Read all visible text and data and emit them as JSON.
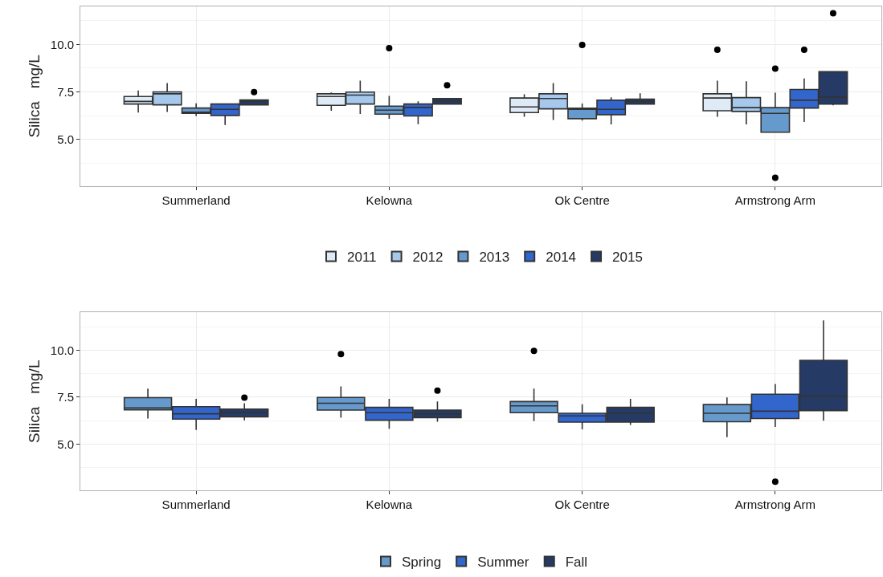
{
  "chart_data": [
    {
      "type": "box",
      "ylabel": "Silica   mg/L",
      "categories": [
        "Summerland",
        "Kelowna",
        "Ok Centre",
        "Armstrong Arm"
      ],
      "ylim": [
        2.55,
        12.0
      ],
      "yticks": [
        {
          "value": 5,
          "label": "5.0"
        },
        {
          "value": 7.5,
          "label": "7.5"
        },
        {
          "value": 10,
          "label": "10.0"
        }
      ],
      "grid": true,
      "legend": "bottom",
      "series": [
        {
          "name": "2011",
          "color": "#deebf7",
          "boxes": [
            {
              "low": 6.41,
              "q1": 6.86,
              "median": 7.0,
              "q3": 7.26,
              "high": 7.57
            },
            {
              "low": 6.51,
              "q1": 6.79,
              "median": 7.26,
              "q3": 7.4,
              "high": 7.47
            },
            {
              "low": 6.19,
              "q1": 6.41,
              "median": 6.71,
              "q3": 7.18,
              "high": 7.37
            },
            {
              "low": 6.19,
              "q1": 6.51,
              "median": 7.18,
              "q3": 7.4,
              "high": 8.09,
              "outliers": [
                9.72
              ]
            }
          ]
        },
        {
          "name": "2012",
          "color": "#a6c8ec",
          "boxes": [
            {
              "low": 6.44,
              "q1": 6.82,
              "median": 7.4,
              "q3": 7.5,
              "high": 7.97
            },
            {
              "low": 6.34,
              "q1": 6.86,
              "median": 7.33,
              "q3": 7.49,
              "high": 8.09
            },
            {
              "low": 6.02,
              "q1": 6.61,
              "median": 7.15,
              "q3": 7.4,
              "high": 7.97
            },
            {
              "low": 5.79,
              "q1": 6.47,
              "median": 6.67,
              "q3": 7.2,
              "high": 8.06
            }
          ]
        },
        {
          "name": "2013",
          "color": "#6699cc",
          "boxes": [
            {
              "low": 6.23,
              "q1": 6.37,
              "median": 6.43,
              "q3": 6.65,
              "high": 6.9
            },
            {
              "low": 6.09,
              "q1": 6.33,
              "median": 6.54,
              "q3": 6.75,
              "high": 7.29,
              "outliers": [
                9.8
              ]
            },
            {
              "low": 5.99,
              "q1": 6.09,
              "median": 6.58,
              "q3": 6.64,
              "high": 6.89,
              "outliers": [
                9.97
              ]
            },
            {
              "low": 5.38,
              "q1": 5.38,
              "median": 6.37,
              "q3": 6.67,
              "high": 7.46,
              "outliers": [
                8.73,
                2.98
              ]
            }
          ]
        },
        {
          "name": "2014",
          "color": "#3366cc",
          "boxes": [
            {
              "low": 5.76,
              "q1": 6.26,
              "median": 6.58,
              "q3": 6.86,
              "high": 6.86
            },
            {
              "low": 5.8,
              "q1": 6.23,
              "median": 6.68,
              "q3": 6.86,
              "high": 7.0
            },
            {
              "low": 5.79,
              "q1": 6.3,
              "median": 6.58,
              "q3": 7.06,
              "high": 7.22
            },
            {
              "low": 5.92,
              "q1": 6.65,
              "median": 7.06,
              "q3": 7.63,
              "high": 8.21,
              "outliers": [
                9.72
              ]
            }
          ]
        },
        {
          "name": "2015",
          "color": "#253b66",
          "boxes": [
            {
              "low": 6.82,
              "q1": 6.82,
              "median": 7.02,
              "q3": 7.08,
              "high": 7.08,
              "outliers": [
                7.49
              ]
            },
            {
              "low": 6.86,
              "q1": 6.86,
              "median": 7.03,
              "q3": 7.15,
              "high": 7.15,
              "outliers": [
                7.85
              ]
            },
            {
              "low": 6.86,
              "q1": 6.86,
              "median": 7.0,
              "q3": 7.12,
              "high": 7.43
            },
            {
              "low": 6.79,
              "q1": 6.86,
              "median": 7.23,
              "q3": 8.56,
              "high": 8.56,
              "outliers": [
                11.64
              ]
            }
          ]
        }
      ]
    },
    {
      "type": "box",
      "ylabel": "Silica   mg/L",
      "categories": [
        "Summerland",
        "Kelowna",
        "Ok Centre",
        "Armstrong Arm"
      ],
      "ylim": [
        2.55,
        12.0
      ],
      "yticks": [
        {
          "value": 5,
          "label": "5.0"
        },
        {
          "value": 7.5,
          "label": "7.5"
        },
        {
          "value": 10,
          "label": "10.0"
        }
      ],
      "grid": true,
      "legend": "bottom",
      "series": [
        {
          "name": "Spring",
          "color": "#6699cc",
          "boxes": [
            {
              "low": 6.37,
              "q1": 6.83,
              "median": 6.93,
              "q3": 7.48,
              "high": 7.96
            },
            {
              "low": 6.41,
              "q1": 6.82,
              "median": 7.18,
              "q3": 7.49,
              "high": 8.08,
              "outliers": [
                9.79
              ]
            },
            {
              "low": 6.23,
              "q1": 6.68,
              "median": 7.04,
              "q3": 7.27,
              "high": 7.96,
              "outliers": [
                9.96
              ]
            },
            {
              "low": 5.38,
              "q1": 6.2,
              "median": 6.65,
              "q3": 7.11,
              "high": 7.49
            }
          ]
        },
        {
          "name": "Summer",
          "color": "#3366cc",
          "boxes": [
            {
              "low": 5.76,
              "q1": 6.34,
              "median": 6.62,
              "q3": 7.0,
              "high": 7.42
            },
            {
              "low": 5.83,
              "q1": 6.28,
              "median": 6.68,
              "q3": 6.96,
              "high": 7.42
            },
            {
              "low": 5.8,
              "q1": 6.18,
              "median": 6.51,
              "q3": 6.65,
              "high": 7.13
            },
            {
              "low": 5.92,
              "q1": 6.37,
              "median": 6.76,
              "q3": 7.66,
              "high": 8.2,
              "outliers": [
                3.01
              ]
            }
          ]
        },
        {
          "name": "Fall",
          "color": "#253b66",
          "boxes": [
            {
              "low": 6.27,
              "q1": 6.46,
              "median": 6.7,
              "q3": 6.87,
              "high": 7.18,
              "outliers": [
                7.48
              ]
            },
            {
              "low": 6.2,
              "q1": 6.42,
              "median": 6.62,
              "q3": 6.82,
              "high": 7.28,
              "outliers": [
                7.85
              ]
            },
            {
              "low": 6.03,
              "q1": 6.18,
              "median": 6.65,
              "q3": 6.96,
              "high": 7.42
            },
            {
              "low": 6.25,
              "q1": 6.79,
              "median": 7.55,
              "q3": 9.46,
              "high": 11.58
            }
          ]
        }
      ]
    }
  ]
}
